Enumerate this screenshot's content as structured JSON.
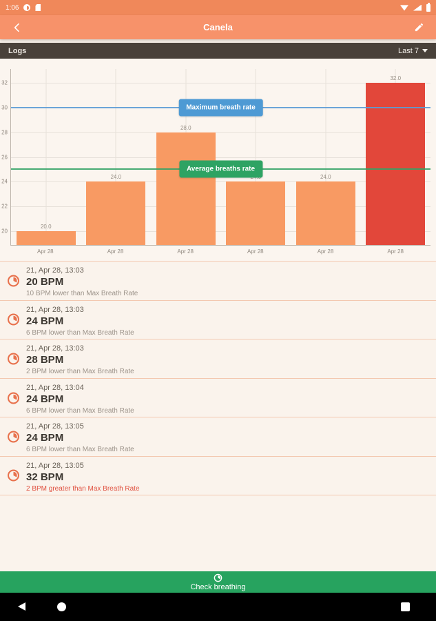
{
  "status_bar": {
    "time": "1:06",
    "left_icons": [
      "app-notification-icon",
      "sd-card-icon"
    ],
    "right_icons": [
      "wifi-icon",
      "cell-signal-icon",
      "battery-icon"
    ]
  },
  "header": {
    "title": "Canela",
    "back_icon": "chevron-left",
    "edit_icon": "pencil"
  },
  "logs_bar": {
    "title": "Logs",
    "filter_label": "Last 7"
  },
  "chart_data": {
    "type": "bar",
    "title": "",
    "xlabel": "",
    "ylabel": "",
    "x": [
      "Apr 28",
      "Apr 28",
      "Apr 28",
      "Apr 28",
      "Apr 28",
      "Apr 28"
    ],
    "values": [
      20.0,
      24.0,
      28.0,
      24.0,
      24.0,
      32.0
    ],
    "bar_labels": [
      "20.0",
      "24.0",
      "28.0",
      "24.0",
      "24.0",
      "32.0"
    ],
    "bar_colors": [
      "#F89A63",
      "#F89A63",
      "#F89A63",
      "#F89A63",
      "#F89A63",
      "#E2473A"
    ],
    "ylim": [
      18.9,
      33.1
    ],
    "yticks": [
      20,
      22,
      24,
      26,
      28,
      30,
      32
    ],
    "grid": true,
    "legend_position": "centered-on-lines",
    "lines": [
      {
        "id": "max",
        "label": "Maximum breath rate",
        "value": 30,
        "color": "#5C9CD6",
        "chip_color": "#4E9AD4"
      },
      {
        "id": "avg",
        "label": "Average breaths rate",
        "value": 25,
        "color": "#33A366",
        "chip_color": "#2EA363"
      }
    ]
  },
  "logs": [
    {
      "timestamp": "21, Apr 28, 13:03",
      "value": "20 BPM",
      "note": "10 BPM lower than Max Breath Rate"
    },
    {
      "timestamp": "21, Apr 28, 13:03",
      "value": "24 BPM",
      "note": "6 BPM lower than Max Breath Rate"
    },
    {
      "timestamp": "21, Apr 28, 13:03",
      "value": "28 BPM",
      "note": "2 BPM lower than Max Breath Rate"
    },
    {
      "timestamp": "21, Apr 28, 13:04",
      "value": "24 BPM",
      "note": "6 BPM lower than Max Breath Rate"
    },
    {
      "timestamp": "21, Apr 28, 13:05",
      "value": "24 BPM",
      "note": "6 BPM lower than Max Breath Rate"
    },
    {
      "timestamp": "21, Apr 28, 13:05",
      "value": "32 BPM",
      "note": "2 BPM greater than Max Breath Rate"
    }
  ],
  "action_button": {
    "label": "Check breathing",
    "icon": "timer"
  },
  "nav_bar": {
    "icons": [
      "back-triangle",
      "home-circle",
      "recents-square"
    ]
  },
  "colors": {
    "status_bar": "#F0885A",
    "app_bar": "#F7926A",
    "logs_bar": "#49413A",
    "background": "#FAF3EC",
    "bar_orange": "#F89A63",
    "bar_red": "#E2473A",
    "max_line": "#5C9CD6",
    "avg_line": "#33A366",
    "alert_text": "#E0503F",
    "button_green": "#27A35F",
    "log_icon": "#E8714C"
  }
}
